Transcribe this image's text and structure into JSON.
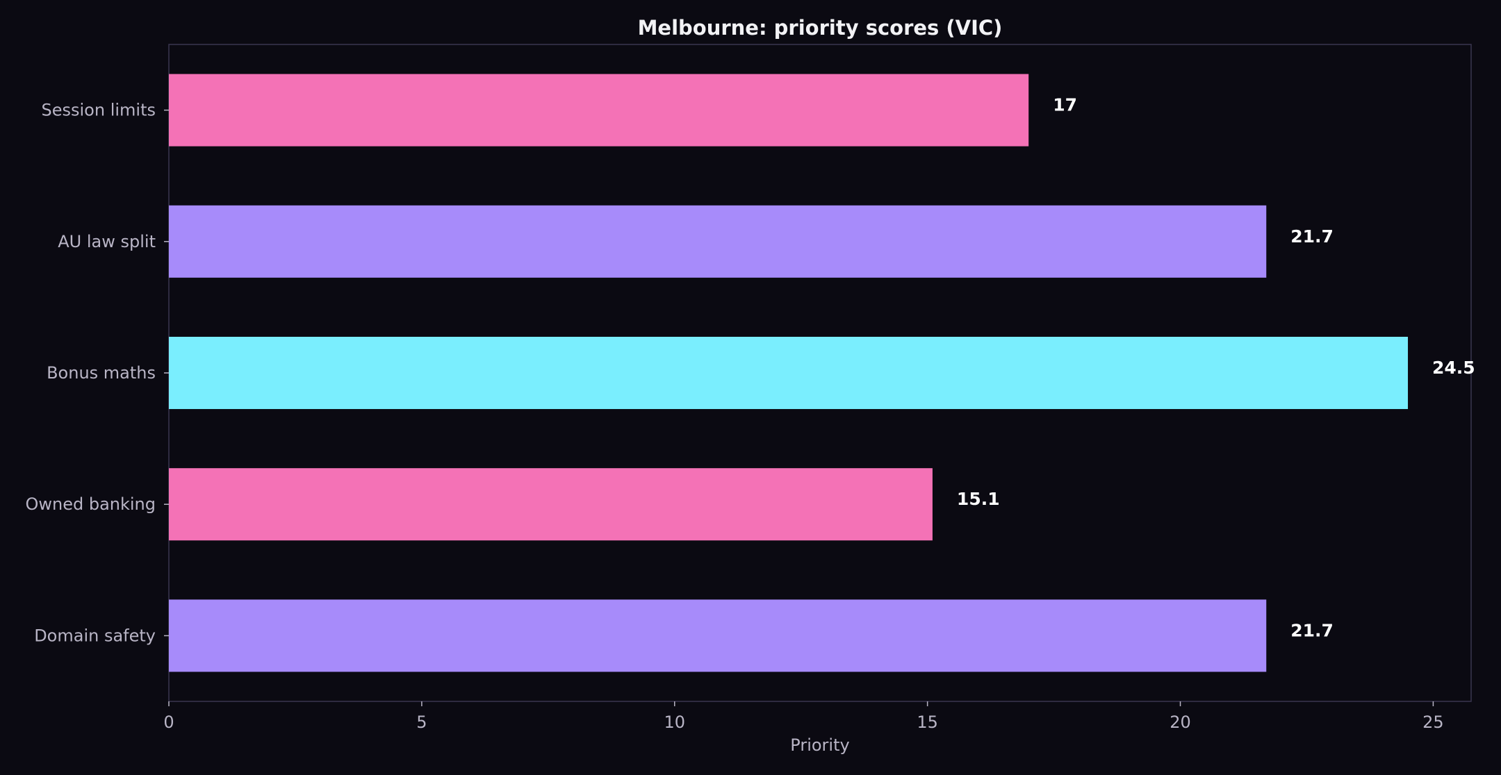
{
  "chart_data": {
    "type": "bar",
    "orientation": "horizontal",
    "title": "Melbourne: priority scores (VIC)",
    "xlabel": "Priority",
    "ylabel": "",
    "xlim": [
      0,
      25.75
    ],
    "xticks": [
      0,
      5,
      10,
      15,
      20,
      25
    ],
    "grid": false,
    "categories": [
      "Session limits",
      "AU law split",
      "Bonus maths",
      "Owned banking",
      "Domain safety"
    ],
    "values": [
      17,
      21.7,
      24.5,
      15.1,
      21.7
    ],
    "value_labels": [
      "17",
      "21.7",
      "24.5",
      "15.1",
      "21.7"
    ],
    "bar_colors": [
      "#f472b6",
      "#a78bfa",
      "#7aeefe",
      "#f472b6",
      "#a78bfa"
    ],
    "background_color": "#0b0a12",
    "frame_color": "#3a3650"
  }
}
